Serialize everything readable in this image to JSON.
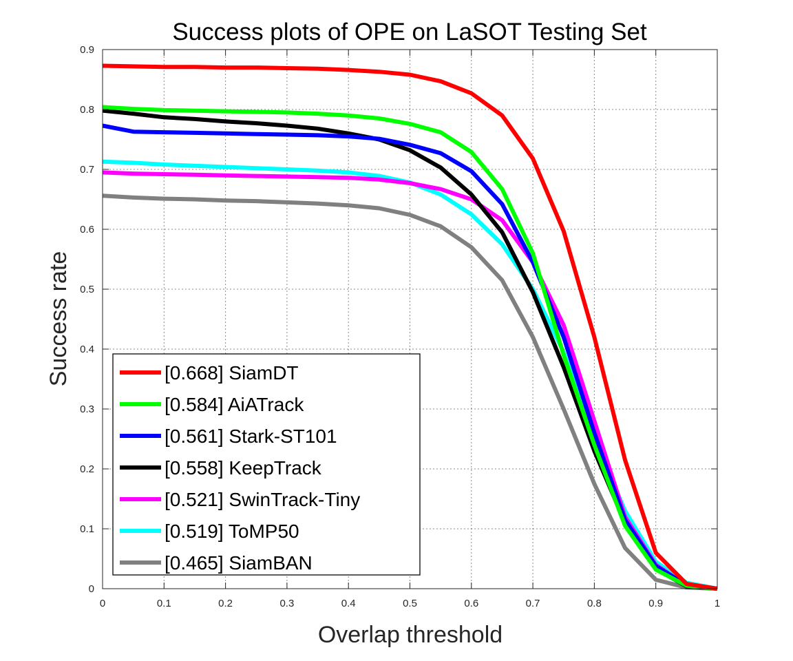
{
  "chart_data": {
    "type": "line",
    "title": "Success plots of OPE on LaSOT Testing Set",
    "xlabel": "Overlap threshold",
    "ylabel": "Success rate",
    "xlim": [
      0,
      1
    ],
    "ylim": [
      0,
      0.9
    ],
    "grid": true,
    "legend_position": "bottom-left",
    "x_ticks": [
      "0",
      "0.1",
      "0.2",
      "0.3",
      "0.4",
      "0.5",
      "0.6",
      "0.7",
      "0.8",
      "0.9",
      "1"
    ],
    "y_ticks": [
      "0",
      "0.1",
      "0.2",
      "0.3",
      "0.4",
      "0.5",
      "0.6",
      "0.7",
      "0.8",
      "0.9"
    ],
    "x": [
      0,
      0.05,
      0.1,
      0.15,
      0.2,
      0.25,
      0.3,
      0.35,
      0.4,
      0.45,
      0.5,
      0.55,
      0.6,
      0.65,
      0.7,
      0.75,
      0.8,
      0.85,
      0.9,
      0.95,
      1.0
    ],
    "series": [
      {
        "name": "[0.668] SiamDT",
        "color": "#ff0000",
        "values": [
          0.873,
          0.872,
          0.871,
          0.871,
          0.87,
          0.87,
          0.869,
          0.868,
          0.866,
          0.863,
          0.858,
          0.847,
          0.827,
          0.79,
          0.718,
          0.597,
          0.42,
          0.215,
          0.06,
          0.008,
          0.0
        ]
      },
      {
        "name": "[0.584] AiATrack",
        "color": "#00ff00",
        "values": [
          0.804,
          0.801,
          0.799,
          0.798,
          0.797,
          0.796,
          0.795,
          0.793,
          0.79,
          0.785,
          0.776,
          0.762,
          0.729,
          0.667,
          0.56,
          0.39,
          0.24,
          0.105,
          0.032,
          0.005,
          0.0
        ]
      },
      {
        "name": "[0.561] Stark-ST101",
        "color": "#0000ff",
        "values": [
          0.773,
          0.763,
          0.762,
          0.761,
          0.76,
          0.759,
          0.758,
          0.757,
          0.755,
          0.751,
          0.741,
          0.727,
          0.697,
          0.642,
          0.545,
          0.42,
          0.26,
          0.115,
          0.038,
          0.006,
          0.0
        ]
      },
      {
        "name": "[0.558] KeepTrack",
        "color": "#000000",
        "values": [
          0.798,
          0.793,
          0.787,
          0.784,
          0.78,
          0.777,
          0.773,
          0.768,
          0.76,
          0.75,
          0.732,
          0.703,
          0.658,
          0.595,
          0.495,
          0.37,
          0.23,
          0.11,
          0.033,
          0.004,
          0.0
        ]
      },
      {
        "name": "[0.521] SwinTrack-Tiny",
        "color": "#ff00ff",
        "values": [
          0.695,
          0.693,
          0.692,
          0.691,
          0.69,
          0.689,
          0.688,
          0.687,
          0.686,
          0.683,
          0.677,
          0.667,
          0.65,
          0.615,
          0.545,
          0.44,
          0.28,
          0.12,
          0.04,
          0.005,
          0.0
        ]
      },
      {
        "name": "[0.519] ToMP50",
        "color": "#00ffff",
        "values": [
          0.713,
          0.711,
          0.708,
          0.706,
          0.704,
          0.702,
          0.7,
          0.698,
          0.695,
          0.689,
          0.678,
          0.658,
          0.625,
          0.575,
          0.5,
          0.395,
          0.25,
          0.13,
          0.045,
          0.01,
          0.0
        ]
      },
      {
        "name": "[0.465] SiamBAN",
        "color": "#808080",
        "values": [
          0.656,
          0.653,
          0.651,
          0.65,
          0.648,
          0.647,
          0.645,
          0.643,
          0.64,
          0.635,
          0.624,
          0.605,
          0.57,
          0.515,
          0.42,
          0.3,
          0.175,
          0.068,
          0.015,
          0.002,
          0.0
        ]
      }
    ]
  }
}
